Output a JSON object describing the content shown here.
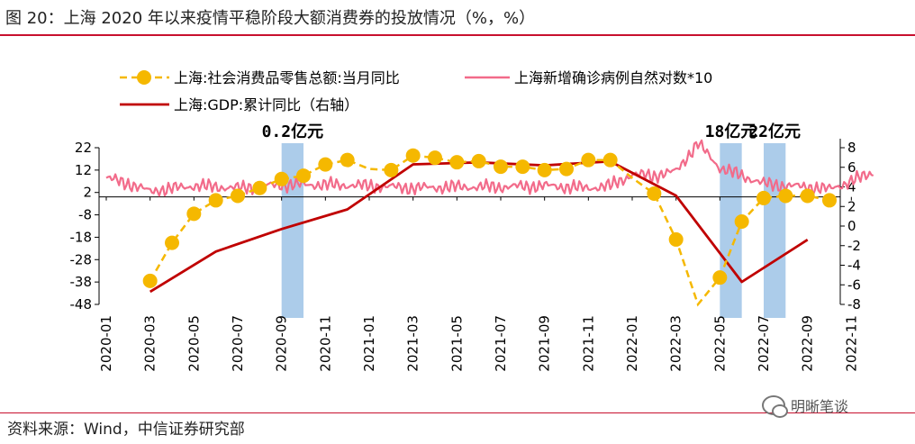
{
  "title": "图 20：上海 2020 年以来疫情平稳阶段大额消费券的投放情况（%，%）",
  "source": "资料来源：Wind，中信证券研究部",
  "watermark": "明晰笔谈",
  "colors": {
    "retail": "#f5b800",
    "covid": "#f26b8a",
    "gdp": "#c00000",
    "band": "#9dc3e6",
    "rule": "#c8102e"
  },
  "chart_data": {
    "type": "line",
    "x_tick_labels": [
      "2020-01",
      "2020-03",
      "2020-05",
      "2020-07",
      "2020-09",
      "2020-11",
      "2021-01",
      "2021-03",
      "2021-05",
      "2021-07",
      "2021-09",
      "2021-11",
      "2022-01",
      "2022-03",
      "2022-05",
      "2022-07",
      "2022-09",
      "2022-11"
    ],
    "left_axis": {
      "ticks": [
        22,
        12,
        2,
        -8,
        -18,
        -28,
        -38,
        -48
      ],
      "ylim": [
        -48,
        22
      ]
    },
    "right_axis": {
      "ticks": [
        8,
        6,
        4,
        2,
        0,
        -2,
        -4,
        -6,
        -8
      ],
      "ylim": [
        -8,
        8
      ]
    },
    "bands": [
      {
        "label": "0.2亿元",
        "start": "2020-09",
        "end": "2020-10"
      },
      {
        "label": "18亿元",
        "start": "2022-05",
        "end": "2022-06"
      },
      {
        "label": "22亿元",
        "start": "2022-07",
        "end": "2022-08"
      }
    ],
    "series": [
      {
        "name": "上海:社会消费品零售总额:当月同比",
        "axis": "left",
        "style": "dashed-markers",
        "x": [
          "2020-03",
          "2020-04",
          "2020-05",
          "2020-06",
          "2020-07",
          "2020-08",
          "2020-09",
          "2020-10",
          "2020-11",
          "2020-12",
          "2021-01",
          "2021-02",
          "2021-03",
          "2021-04",
          "2021-05",
          "2021-06",
          "2021-07",
          "2021-08",
          "2021-09",
          "2021-10",
          "2021-11",
          "2021-12",
          "2022-01",
          "2022-02",
          "2022-03",
          "2022-04",
          "2022-05",
          "2022-06",
          "2022-07",
          "2022-08",
          "2022-09",
          "2022-10"
        ],
        "values": [
          -37.5,
          -20.5,
          -7.5,
          -1.5,
          0.5,
          4,
          8,
          9.5,
          14.5,
          16.5,
          12.5,
          12,
          18.5,
          17.5,
          15.5,
          16,
          13.5,
          13.5,
          12,
          12.5,
          16.5,
          16.5,
          8.5,
          1.5,
          -19,
          -48,
          -36,
          -11,
          -0.5,
          0.5,
          0.5,
          -1.5
        ],
        "marker_x": [
          "2020-03",
          "2020-04",
          "2020-05",
          "2020-06",
          "2020-07",
          "2020-08",
          "2020-09",
          "2020-10",
          "2020-11",
          "2020-12",
          "2021-02",
          "2021-03",
          "2021-04",
          "2021-05",
          "2021-06",
          "2021-07",
          "2021-08",
          "2021-09",
          "2021-10",
          "2021-11",
          "2021-12",
          "2022-02",
          "2022-03",
          "2022-05",
          "2022-06",
          "2022-07",
          "2022-08",
          "2022-09",
          "2022-10"
        ]
      },
      {
        "name": "上海新增确诊病例自然对数*10",
        "axis": "left",
        "style": "noisy-line",
        "x": [
          "2020-01",
          "2020-02",
          "2020-03",
          "2020-05",
          "2020-07",
          "2020-09",
          "2020-11",
          "2021-01",
          "2021-03",
          "2021-05",
          "2021-07",
          "2021-09",
          "2021-11",
          "2021-12",
          "2022-01",
          "2022-02",
          "2022-03",
          "2022-04",
          "2022-05",
          "2022-07",
          "2022-08",
          "2022-09",
          "2022-10",
          "2022-11",
          "2022-12"
        ],
        "values": [
          8.5,
          6,
          2.5,
          5,
          4,
          5.5,
          5.5,
          5,
          4,
          4.5,
          4.5,
          5,
          4,
          5,
          10,
          9.5,
          11.5,
          24,
          13,
          6,
          5,
          4.5,
          3.5,
          7,
          11
        ]
      },
      {
        "name": "上海:GDP:累计同比（右轴）",
        "axis": "right",
        "style": "solid",
        "x": [
          "2020-03",
          "2020-06",
          "2020-09",
          "2020-12",
          "2021-03",
          "2021-06",
          "2021-09",
          "2021-12",
          "2022-03",
          "2022-06",
          "2022-09"
        ],
        "values": [
          -6.7,
          -2.6,
          -0.3,
          1.7,
          6.3,
          6.5,
          6.2,
          6.6,
          3.1,
          -5.7,
          -1.4
        ]
      }
    ]
  }
}
